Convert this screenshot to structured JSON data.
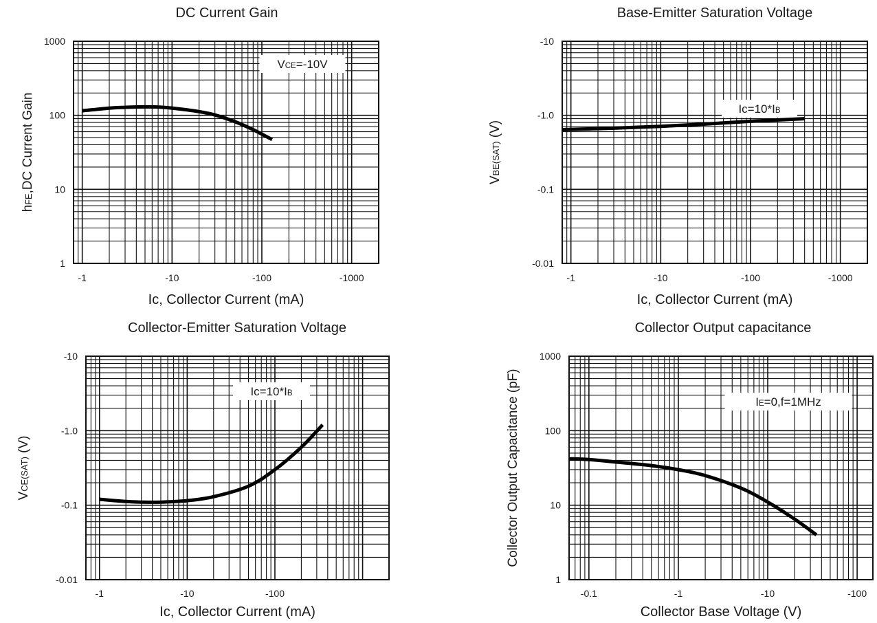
{
  "chart_data": [
    {
      "type": "line",
      "title": "DC Current Gain",
      "xlabel": "Ic, Collector Current (mA)",
      "ylabel_main": "h",
      "ylabel_sub": "FE",
      "ylabel_rest": ",DC Current Gain",
      "x_scale": "log",
      "y_scale": "log",
      "x_range": [
        -0.8,
        -2000
      ],
      "y_range": [
        1,
        1000
      ],
      "x_ticks": [
        {
          "value": -1,
          "label": "-1"
        },
        {
          "value": -10,
          "label": "-10"
        },
        {
          "value": -100,
          "label": "-100"
        },
        {
          "value": -1000,
          "label": "-1000"
        }
      ],
      "y_ticks": [
        {
          "value": 1,
          "label": "1"
        },
        {
          "value": 10,
          "label": "10"
        },
        {
          "value": 100,
          "label": "100"
        },
        {
          "value": 1000,
          "label": "1000"
        }
      ],
      "annotation": {
        "main": "V",
        "sub": "CE",
        "rest": "=-10V"
      },
      "series": [
        {
          "x": [
            -1,
            -2,
            -3,
            -5,
            -8,
            -12,
            -20,
            -30,
            -50,
            -80,
            -130
          ],
          "y": [
            115,
            125,
            128,
            130,
            128,
            122,
            112,
            101,
            82,
            64,
            47
          ]
        }
      ]
    },
    {
      "type": "line",
      "title": "Base-Emitter Saturation Voltage",
      "xlabel": "Ic, Collector Current (mA)",
      "ylabel_main": "V",
      "ylabel_sub": "BE(SAT)",
      "ylabel_rest": " (V)",
      "x_scale": "log",
      "y_scale": "log",
      "x_range": [
        -0.8,
        -2000
      ],
      "y_range": [
        -0.01,
        -10
      ],
      "x_ticks": [
        {
          "value": -1,
          "label": "-1"
        },
        {
          "value": -10,
          "label": "-10"
        },
        {
          "value": -100,
          "label": "-100"
        },
        {
          "value": -1000,
          "label": "-1000"
        }
      ],
      "y_ticks": [
        {
          "value": -0.01,
          "label": "-0.01"
        },
        {
          "value": -0.1,
          "label": "-0.1"
        },
        {
          "value": -1,
          "label": "-1.0"
        },
        {
          "value": -10,
          "label": "-10"
        }
      ],
      "annotation": {
        "main": "Ic=10*I",
        "sub": "B",
        "rest": ""
      },
      "series": [
        {
          "x": [
            -0.8,
            -3,
            -10,
            -30,
            -100,
            -400
          ],
          "y": [
            -0.64,
            -0.67,
            -0.71,
            -0.76,
            -0.83,
            -0.9
          ]
        }
      ]
    },
    {
      "type": "line",
      "title": "Collector-Emitter Saturation Voltage",
      "xlabel": "Ic, Collector Current (mA)",
      "ylabel_main": "V",
      "ylabel_sub": "CE(SAT)",
      "ylabel_rest": " (V)",
      "x_scale": "log",
      "y_scale": "log",
      "x_range": [
        -0.7,
        -2000
      ],
      "y_range": [
        -0.01,
        -10
      ],
      "x_ticks": [
        {
          "value": -1,
          "label": "-1"
        },
        {
          "value": -10,
          "label": "-10"
        },
        {
          "value": -100,
          "label": "-100"
        }
      ],
      "y_ticks": [
        {
          "value": -0.01,
          "label": "-0.01"
        },
        {
          "value": -0.1,
          "label": "-0.1"
        },
        {
          "value": -1,
          "label": "-1.0"
        },
        {
          "value": -10,
          "label": "-10"
        }
      ],
      "annotation": {
        "main": "Ic=10*I",
        "sub": "B",
        "rest": ""
      },
      "series": [
        {
          "x": [
            -1,
            -2,
            -3,
            -5,
            -10,
            -20,
            -50,
            -100,
            -200,
            -350
          ],
          "y": [
            -0.12,
            -0.112,
            -0.11,
            -0.11,
            -0.115,
            -0.13,
            -0.18,
            -0.3,
            -0.6,
            -1.2
          ]
        }
      ]
    },
    {
      "type": "line",
      "title": "Collector Output capacitance",
      "xlabel": "Collector Base Voltage (V)",
      "ylabel_main": "Collector Output Capacitance (pF)",
      "ylabel_sub": "",
      "ylabel_rest": "",
      "x_scale": "log",
      "y_scale": "log",
      "x_range": [
        -0.06,
        -150
      ],
      "y_range": [
        1,
        1000
      ],
      "x_ticks": [
        {
          "value": -0.1,
          "label": "-0.1"
        },
        {
          "value": -1,
          "label": "-1"
        },
        {
          "value": -10,
          "label": "-10"
        },
        {
          "value": -100,
          "label": "-100"
        }
      ],
      "y_ticks": [
        {
          "value": 1,
          "label": "1"
        },
        {
          "value": 10,
          "label": "10"
        },
        {
          "value": 100,
          "label": "100"
        },
        {
          "value": 1000,
          "label": "1000"
        }
      ],
      "annotation": {
        "main": "I",
        "sub": "E",
        "rest": "=0,f=1MHz"
      },
      "series": [
        {
          "x": [
            -0.06,
            -0.1,
            -0.2,
            -0.5,
            -1,
            -2,
            -5,
            -10,
            -20,
            -35
          ],
          "y": [
            42,
            41,
            38,
            34,
            30,
            25,
            17,
            11,
            6.5,
            4
          ]
        }
      ]
    }
  ]
}
